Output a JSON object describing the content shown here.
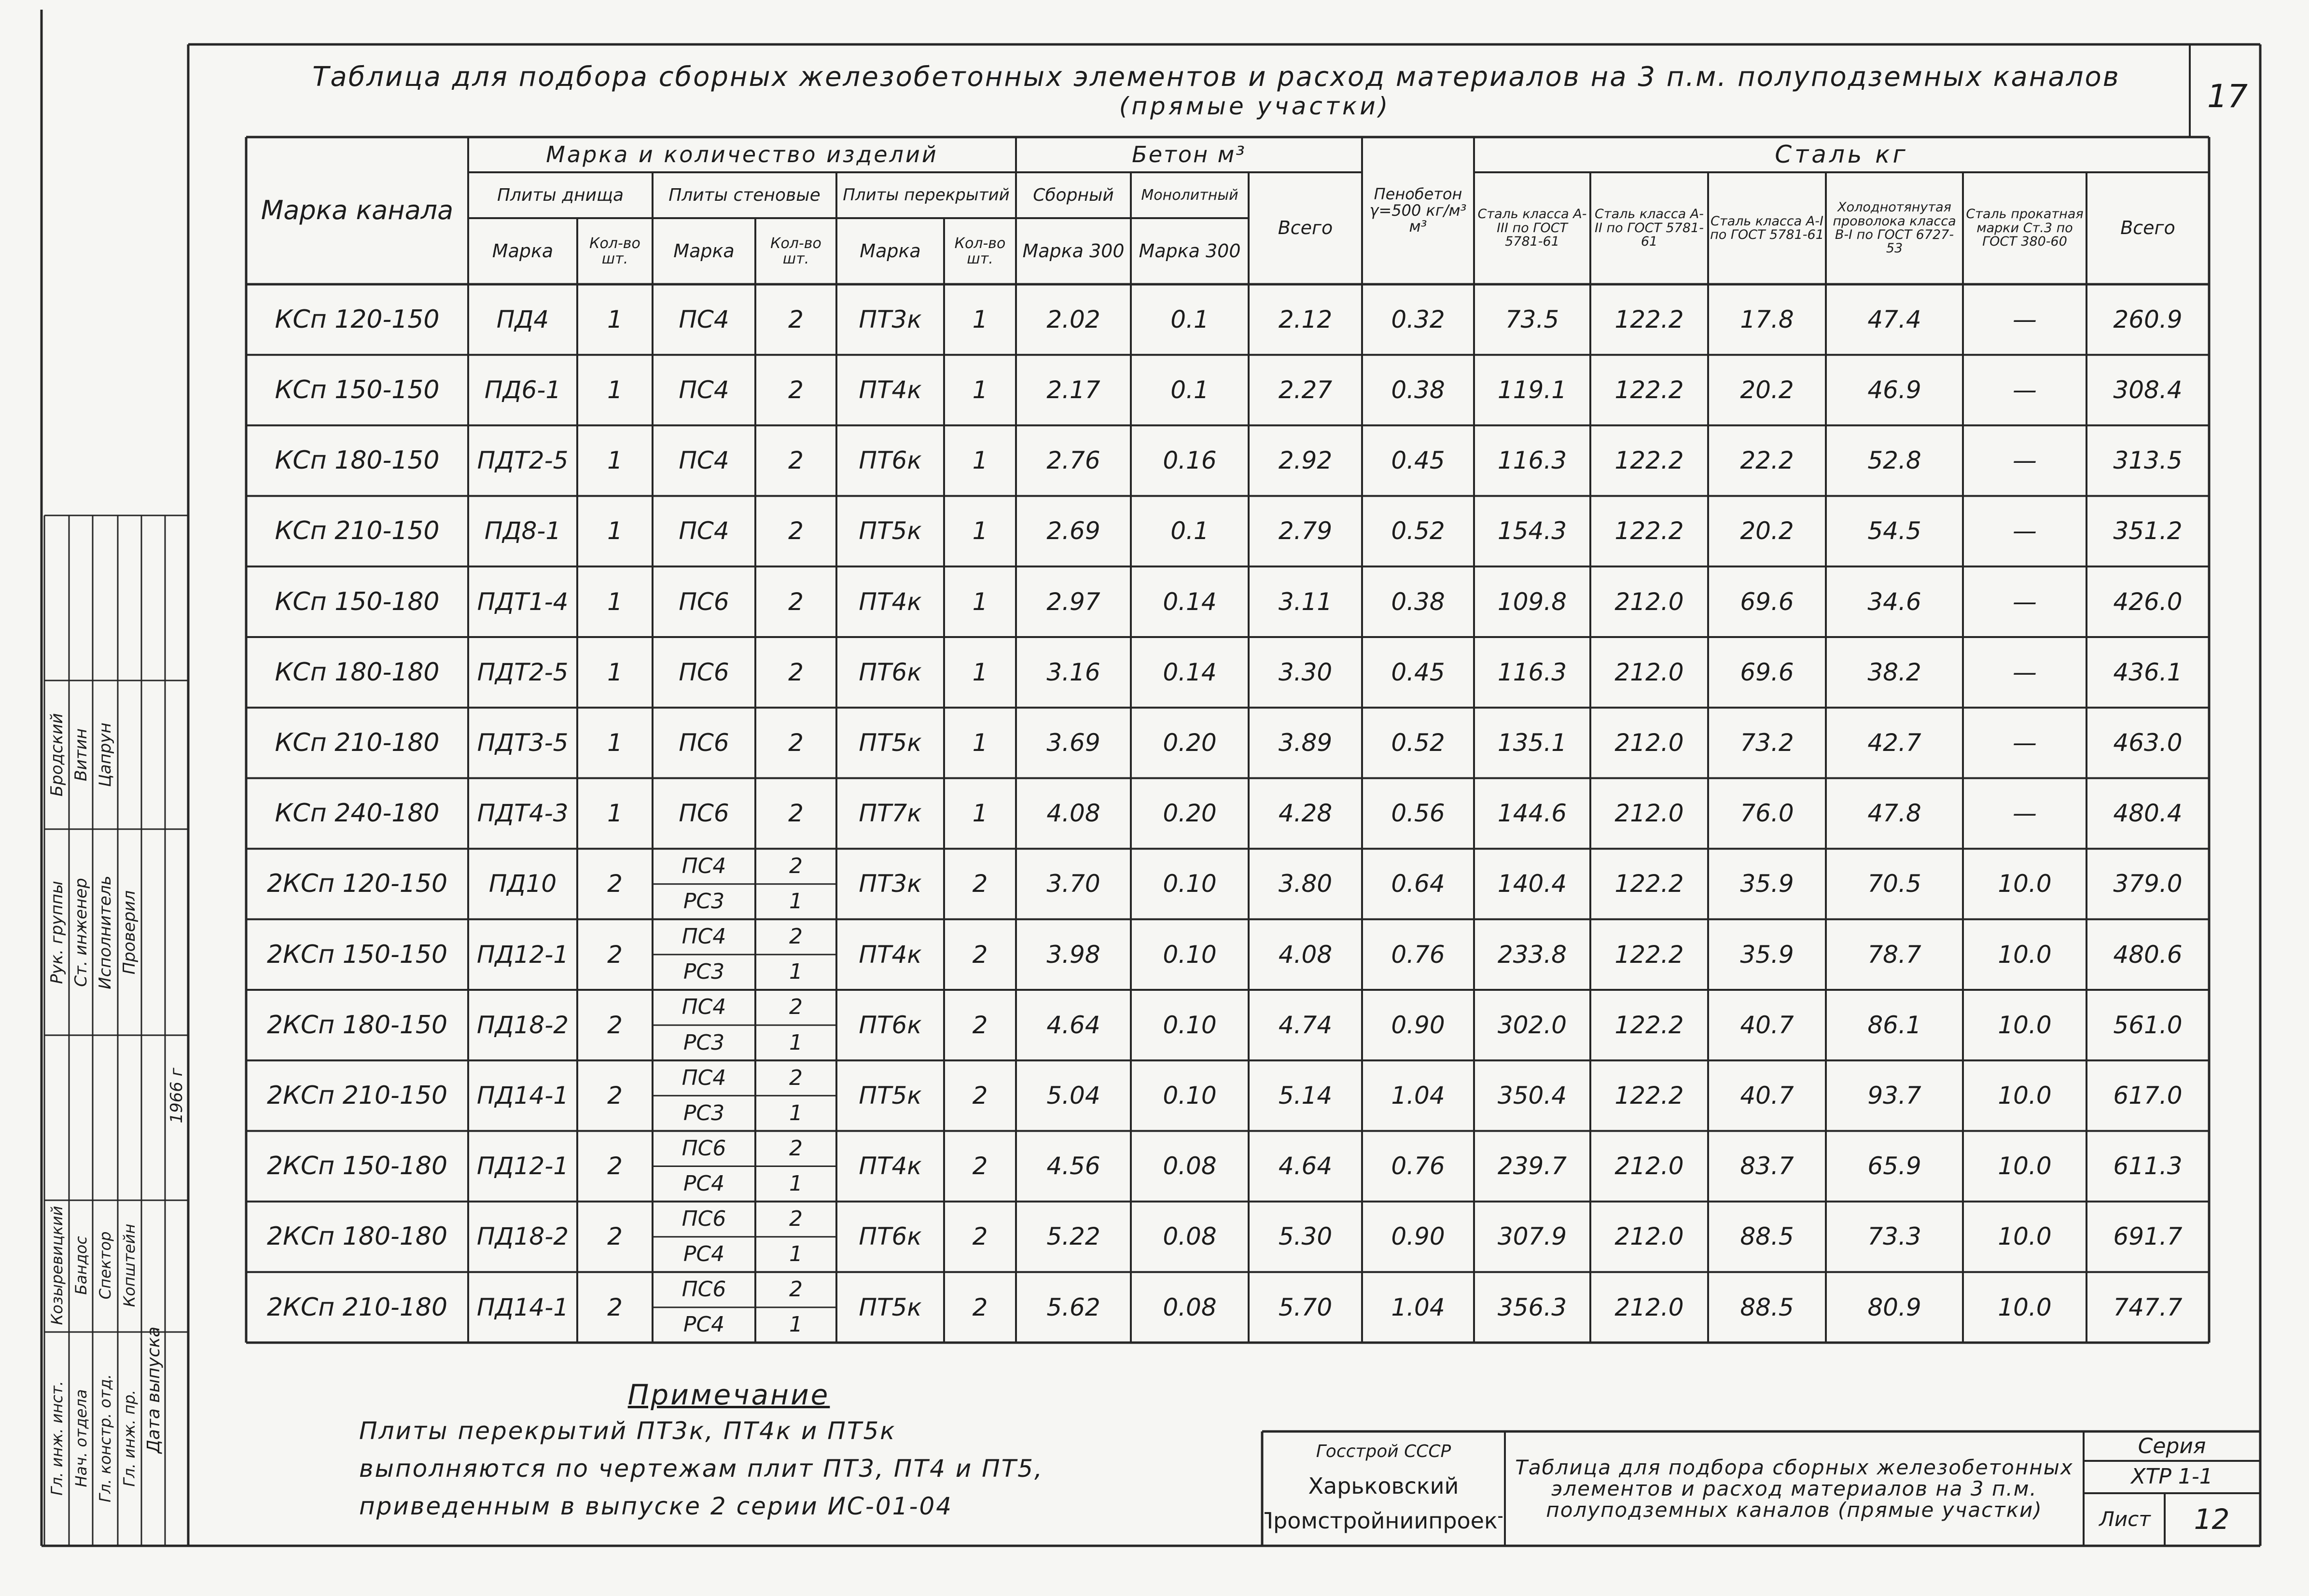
{
  "title": "Таблица для подбора сборных железобетонных элементов и расход материалов на 3 п.м. полуподземных каналов",
  "subtitle": "(прямые участки)",
  "page_number": "17",
  "table": {
    "header": {
      "channel_mark": "Марка канала",
      "products": "Марка и количество изделий",
      "bottom_slabs": "Плиты днища",
      "wall_slabs": "Плиты стеновые",
      "cover_slabs": "Плиты перекрытий",
      "concrete": "Бетон м³",
      "precast": "Сборный",
      "monolithic": "Монолитный",
      "foam_concrete": "Пенобетон γ=500 кг/м³ м³",
      "steel": "Сталь кг",
      "leaf": [
        "Марка",
        "Кол-во шт.",
        "Марка",
        "Кол-во шт.",
        "Марка",
        "Кол-во шт.",
        "Марка 300",
        "Марка 300",
        "Всего",
        "Сталь класса А-III по ГОСТ 5781-61",
        "Сталь класса А-II по ГОСТ 5781-61",
        "Сталь класса А-I по ГОСТ 5781-61",
        "Холоднотянутая проволока класса В-I по ГОСТ 6727-53",
        "Сталь прокатная марки Ст.3 по ГОСТ 380-60",
        "Всего"
      ]
    },
    "rows": [
      [
        "КСп 120-150",
        "ПД4",
        "1",
        "ПС4",
        "2",
        "ПТ3к",
        "1",
        "2.02",
        "0.1",
        "2.12",
        "0.32",
        "73.5",
        "122.2",
        "17.8",
        "47.4",
        "—",
        "260.9"
      ],
      [
        "КСп 150-150",
        "ПД6-1",
        "1",
        "ПС4",
        "2",
        "ПТ4к",
        "1",
        "2.17",
        "0.1",
        "2.27",
        "0.38",
        "119.1",
        "122.2",
        "20.2",
        "46.9",
        "—",
        "308.4"
      ],
      [
        "КСп 180-150",
        "ПДТ2-5",
        "1",
        "ПС4",
        "2",
        "ПТ6к",
        "1",
        "2.76",
        "0.16",
        "2.92",
        "0.45",
        "116.3",
        "122.2",
        "22.2",
        "52.8",
        "—",
        "313.5"
      ],
      [
        "КСп 210-150",
        "ПД8-1",
        "1",
        "ПС4",
        "2",
        "ПТ5к",
        "1",
        "2.69",
        "0.1",
        "2.79",
        "0.52",
        "154.3",
        "122.2",
        "20.2",
        "54.5",
        "—",
        "351.2"
      ],
      [
        "КСп 150-180",
        "ПДТ1-4",
        "1",
        "ПС6",
        "2",
        "ПТ4к",
        "1",
        "2.97",
        "0.14",
        "3.11",
        "0.38",
        "109.8",
        "212.0",
        "69.6",
        "34.6",
        "—",
        "426.0"
      ],
      [
        "КСп 180-180",
        "ПДТ2-5",
        "1",
        "ПС6",
        "2",
        "ПТ6к",
        "1",
        "3.16",
        "0.14",
        "3.30",
        "0.45",
        "116.3",
        "212.0",
        "69.6",
        "38.2",
        "—",
        "436.1"
      ],
      [
        "КСп 210-180",
        "ПДТ3-5",
        "1",
        "ПС6",
        "2",
        "ПТ5к",
        "1",
        "3.69",
        "0.20",
        "3.89",
        "0.52",
        "135.1",
        "212.0",
        "73.2",
        "42.7",
        "—",
        "463.0"
      ],
      [
        "КСп 240-180",
        "ПДТ4-3",
        "1",
        "ПС6",
        "2",
        "ПТ7к",
        "1",
        "4.08",
        "0.20",
        "4.28",
        "0.56",
        "144.6",
        "212.0",
        "76.0",
        "47.8",
        "—",
        "480.4"
      ],
      [
        "2КСп 120-150",
        "ПД10",
        "2",
        [
          "ПС4",
          "РС3"
        ],
        [
          "2",
          "1"
        ],
        "ПТ3к",
        "2",
        "3.70",
        "0.10",
        "3.80",
        "0.64",
        "140.4",
        "122.2",
        "35.9",
        "70.5",
        "10.0",
        "379.0"
      ],
      [
        "2КСп 150-150",
        "ПД12-1",
        "2",
        [
          "ПС4",
          "РС3"
        ],
        [
          "2",
          "1"
        ],
        "ПТ4к",
        "2",
        "3.98",
        "0.10",
        "4.08",
        "0.76",
        "233.8",
        "122.2",
        "35.9",
        "78.7",
        "10.0",
        "480.6"
      ],
      [
        "2КСп 180-150",
        "ПД18-2",
        "2",
        [
          "ПС4",
          "РС3"
        ],
        [
          "2",
          "1"
        ],
        "ПТ6к",
        "2",
        "4.64",
        "0.10",
        "4.74",
        "0.90",
        "302.0",
        "122.2",
        "40.7",
        "86.1",
        "10.0",
        "561.0"
      ],
      [
        "2КСп 210-150",
        "ПД14-1",
        "2",
        [
          "ПС4",
          "РС3"
        ],
        [
          "2",
          "1"
        ],
        "ПТ5к",
        "2",
        "5.04",
        "0.10",
        "5.14",
        "1.04",
        "350.4",
        "122.2",
        "40.7",
        "93.7",
        "10.0",
        "617.0"
      ],
      [
        "2КСп 150-180",
        "ПД12-1",
        "2",
        [
          "ПС6",
          "РС4"
        ],
        [
          "2",
          "1"
        ],
        "ПТ4к",
        "2",
        "4.56",
        "0.08",
        "4.64",
        "0.76",
        "239.7",
        "212.0",
        "83.7",
        "65.9",
        "10.0",
        "611.3"
      ],
      [
        "2КСп 180-180",
        "ПД18-2",
        "2",
        [
          "ПС6",
          "РС4"
        ],
        [
          "2",
          "1"
        ],
        "ПТ6к",
        "2",
        "5.22",
        "0.08",
        "5.30",
        "0.90",
        "307.9",
        "212.0",
        "88.5",
        "73.3",
        "10.0",
        "691.7"
      ],
      [
        "2КСп 210-180",
        "ПД14-1",
        "2",
        [
          "ПС6",
          "РС4"
        ],
        [
          "2",
          "1"
        ],
        "ПТ5к",
        "2",
        "5.62",
        "0.08",
        "5.70",
        "1.04",
        "356.3",
        "212.0",
        "88.5",
        "80.9",
        "10.0",
        "747.7"
      ]
    ]
  },
  "note": {
    "title": "Примечание",
    "lines": [
      "Плиты перекрытий ПТ3к, ПТ4к и ПТ5к",
      "выполняются по чертежам плит ПТ3, ПТ4 и ПТ5,",
      "приведенным в выпуске 2 серии ИС-01-04"
    ]
  },
  "stamp": {
    "organization": [
      "Госстрой СССР",
      "Харьковский",
      "Промстройниипроект"
    ],
    "title": "Таблица для подбора сборных железобетонных элементов и расход материалов на 3 п.м. полуподземных каналов (прямые участки)",
    "series_label": "Серия",
    "series": "ХТР 1-1",
    "sheet_label": "Лист",
    "sheet": "12"
  },
  "approvals_upper": [
    {
      "role": "Рук. группы",
      "name": "Бродский"
    },
    {
      "role": "Ст. инженер",
      "name": "Витин"
    },
    {
      "role": "Исполнитель",
      "name": "Цапрун"
    },
    {
      "role": "Проверил"
    }
  ],
  "approvals_lower": [
    {
      "role": "Гл. инж. инст.",
      "name": "Козыревицкий"
    },
    {
      "role": "Нач. отдела",
      "name": "Бандос"
    },
    {
      "role": "Гл. констр. отд.",
      "name": "Спектор"
    },
    {
      "role": "Гл. инж. пр.",
      "name": "Копштейн"
    }
  ],
  "release_date": {
    "label": "Дата выпуска",
    "value": "1966 г"
  }
}
